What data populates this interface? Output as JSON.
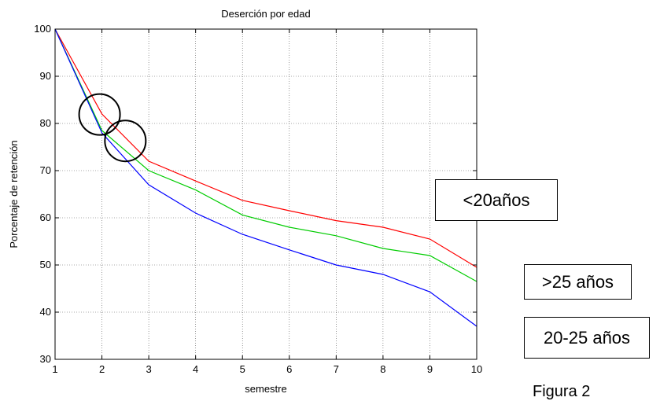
{
  "chart_data": {
    "type": "line",
    "title": "Deserción por edad",
    "xlabel": "semestre",
    "ylabel": "Porcentaje de retención",
    "x": [
      1,
      2,
      3,
      4,
      5,
      6,
      7,
      8,
      9,
      10
    ],
    "xlim": [
      1,
      10
    ],
    "ylim": [
      30,
      100
    ],
    "xticks": [
      1,
      2,
      3,
      4,
      5,
      6,
      7,
      8,
      9,
      10
    ],
    "yticks": [
      30,
      40,
      50,
      60,
      70,
      80,
      90,
      100
    ],
    "grid": true,
    "series": [
      {
        "color": "#ff0000",
        "values": [
          100,
          82,
          72,
          67.8,
          63.7,
          61.5,
          59.4,
          58,
          55.5,
          49.5
        ]
      },
      {
        "color": "#00cc00",
        "values": [
          100,
          78.5,
          70,
          65.9,
          60.6,
          58,
          56.2,
          53.5,
          52,
          46.5
        ]
      },
      {
        "color": "#0000ff",
        "values": [
          100,
          78,
          67,
          61,
          56.5,
          53.2,
          50,
          48,
          44.3,
          37
        ]
      }
    ],
    "highlights": [
      {
        "x": 1.95,
        "y": 81.9
      },
      {
        "x": 2.5,
        "y": 76.3
      }
    ]
  },
  "callouts": {
    "under20": "<20años",
    "over25": ">25 años",
    "age20_25": "20-25 años"
  },
  "caption": "Figura 2"
}
